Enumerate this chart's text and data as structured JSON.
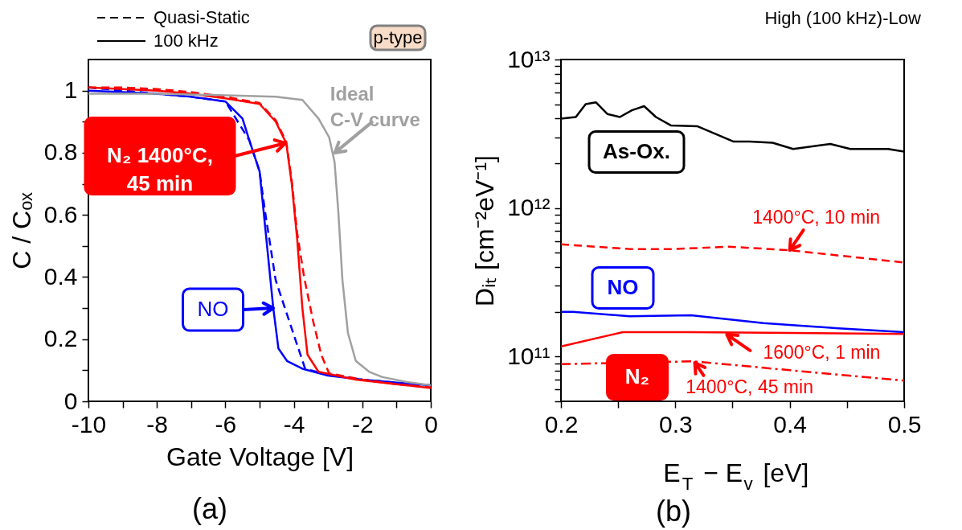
{
  "chart_data": [
    {
      "type": "line",
      "xlabel": "Gate Voltage [V]",
      "ylabel": "C / Cₒₓ",
      "xlim": [
        -10,
        0
      ],
      "xticks": [
        -10,
        {
          "value": -9,
          "label": null
        },
        -8,
        {
          "value": -7,
          "label": null
        },
        -6,
        {
          "value": -5,
          "label": null
        },
        -4,
        {
          "value": -3,
          "label": null
        },
        -2,
        {
          "value": -1,
          "label": null
        },
        0
      ],
      "ylim": [
        0,
        1.1
      ],
      "yticks": [
        0,
        {
          "value": 0.1,
          "label": null
        },
        0.2,
        {
          "value": 0.3,
          "label": null
        },
        0.4,
        {
          "value": 0.5,
          "label": null
        },
        0.6,
        {
          "value": 0.7,
          "label": null
        },
        0.8,
        {
          "value": 0.9,
          "label": null
        },
        1
      ],
      "series": [
        {
          "color": "#0000ff",
          "line_style": "solid",
          "x": [
            -10,
            -9,
            -8,
            -7,
            -6,
            -5.5,
            -5.3,
            -5.0,
            -4.8,
            -4.6,
            -4.45,
            -4.2,
            -3.75,
            -3,
            -2,
            -1,
            0
          ],
          "values": [
            1.0,
            0.995,
            0.99,
            0.98,
            0.965,
            0.91,
            0.84,
            0.74,
            0.52,
            0.3,
            0.17,
            0.13,
            0.105,
            0.083,
            0.07,
            0.06,
            0.052
          ]
        },
        {
          "color": "#0000ff",
          "line_style": "dashed",
          "x": [
            -10,
            -8,
            -7,
            -6,
            -5.3,
            -5.0,
            -4.84,
            -4.53,
            -4.14,
            -3.67,
            -3,
            -2,
            -1,
            0
          ],
          "values": [
            1.01,
            0.99,
            0.98,
            0.965,
            0.84,
            0.74,
            0.61,
            0.39,
            0.26,
            0.105,
            0.085,
            0.07,
            0.06,
            0.052
          ]
        },
        {
          "color": "#ff0000",
          "line_style": "solid",
          "x": [
            -10,
            -9,
            -8,
            -7,
            -6,
            -5,
            -4.53,
            -4.22,
            -4.06,
            -3.9,
            -3.75,
            -3.6,
            -3.28,
            -2.19,
            -1,
            0
          ],
          "values": [
            1.01,
            1.005,
            1.0,
            0.99,
            0.975,
            0.957,
            0.9,
            0.83,
            0.7,
            0.52,
            0.3,
            0.15,
            0.095,
            0.07,
            0.055,
            0.043
          ]
        },
        {
          "color": "#ff0000",
          "line_style": "dashed",
          "x": [
            -10,
            -9,
            -8,
            -7,
            -6,
            -5,
            -4.53,
            -4.22,
            -4.06,
            -3.9,
            -3.7,
            -3.44,
            -3.2,
            -2.97,
            -2,
            -1,
            0
          ],
          "values": [
            1.01,
            1.01,
            1.005,
            0.995,
            0.98,
            0.96,
            0.905,
            0.835,
            0.71,
            0.54,
            0.4,
            0.26,
            0.15,
            0.09,
            0.07,
            0.055,
            0.045
          ]
        },
        {
          "color": "#a0a0a0",
          "line_style": "solid",
          "x": [
            -10,
            -8,
            -6,
            -4.53,
            -3.75,
            -3.28,
            -2.97,
            -2.81,
            -2.7,
            -2.58,
            -2.42,
            -2.19,
            -1.8,
            -1.41,
            -0.7,
            0
          ],
          "values": [
            0.99,
            0.99,
            0.985,
            0.98,
            0.97,
            0.91,
            0.85,
            0.77,
            0.61,
            0.39,
            0.22,
            0.13,
            0.095,
            0.078,
            0.062,
            0.052
          ]
        }
      ],
      "annotations": [
        "Quasi-Static",
        "100 kHz",
        "p-type",
        {
          "text": "Ideal\nC-V curve",
          "x": -2.8,
          "y": 0.8
        },
        "N₂ 1400°C,\n45 min",
        {
          "text": "NO",
          "x": -4.6,
          "y": 0.3
        },
        "(a)"
      ]
    },
    {
      "type": "line",
      "title": "High (100 kHz)-Low",
      "xlabel": "E$_{T}$ − E$_{v}$ [eV]",
      "ylabel": "Dᵢₜ [cm⁻²eV⁻¹]",
      "log": "y",
      "xlim": [
        0.2,
        0.5
      ],
      "xticks": [
        0.2,
        {
          "value": 0.25,
          "label": null
        },
        0.3,
        {
          "value": 0.35,
          "label": null
        },
        0.4,
        {
          "value": 0.45,
          "label": null
        },
        0.5
      ],
      "ylim": [
        50000000000.0,
        10000000000000.0
      ],
      "yticks": [
        {
          "value": 50000000000.0,
          "label": null
        },
        {
          "value": 60000000000.0,
          "label": null
        },
        {
          "value": 70000000000.0,
          "label": null
        },
        {
          "value": 80000000000.0,
          "label": null
        },
        {
          "value": 90000000000.0,
          "label": null
        },
        {
          "value": 100000000000.0,
          "label": "10¹¹"
        },
        {
          "value": 200000000000.0,
          "label": null
        },
        {
          "value": 300000000000.0,
          "label": null
        },
        {
          "value": 400000000000.0,
          "label": null
        },
        {
          "value": 500000000000.0,
          "label": null
        },
        {
          "value": 600000000000.0,
          "label": null
        },
        {
          "value": 700000000000.0,
          "label": null
        },
        {
          "value": 800000000000.0,
          "label": null
        },
        {
          "value": 900000000000.0,
          "label": null
        },
        {
          "value": 1000000000000.0,
          "label": "10¹²"
        },
        {
          "value": 2000000000000.0,
          "label": null
        },
        {
          "value": 3000000000000.0,
          "label": null
        },
        {
          "value": 4000000000000.0,
          "label": null
        },
        {
          "value": 5000000000000.0,
          "label": null
        },
        {
          "value": 6000000000000.0,
          "label": null
        },
        {
          "value": 7000000000000.0,
          "label": null
        },
        {
          "value": 8000000000000.0,
          "label": null
        },
        {
          "value": 9000000000000.0,
          "label": null
        },
        {
          "value": 10000000000000.0,
          "label": "10¹³"
        }
      ],
      "series": [
        {
          "color": "#000000",
          "line_style": "solid",
          "x": [
            0.2,
            0.213,
            0.2216,
            0.2305,
            0.2405,
            0.2515,
            0.262,
            0.2727,
            0.283,
            0.296,
            0.3195,
            0.351,
            0.365,
            0.385,
            0.403,
            0.4355,
            0.453,
            0.486,
            0.5
          ],
          "values": [
            4000000000000.0,
            4100000000000.0,
            5000000000000.0,
            5150000000000.0,
            4300000000000.0,
            4100000000000.0,
            4550000000000.0,
            4850000000000.0,
            4100000000000.0,
            3600000000000.0,
            3550000000000.0,
            2800000000000.0,
            2800000000000.0,
            2750000000000.0,
            2500000000000.0,
            2700000000000.0,
            2500000000000.0,
            2500000000000.0,
            2400000000000.0
          ]
        },
        {
          "color": "#ff0000",
          "line_style": "dashed",
          "x": [
            0.2,
            0.26,
            0.3,
            0.3465,
            0.4,
            0.5
          ],
          "values": [
            570000000000.0,
            530000000000.0,
            530000000000.0,
            550000000000.0,
            520000000000.0,
            430000000000.0
          ]
        },
        {
          "color": "#0000ff",
          "line_style": "solid",
          "x": [
            0.2,
            0.2105,
            0.26,
            0.3137,
            0.377,
            0.4426,
            0.5
          ],
          "values": [
            200000000000.0,
            200000000000.0,
            187000000000.0,
            190000000000.0,
            168000000000.0,
            155000000000.0,
            146000000000.0
          ]
        },
        {
          "color": "#ff0000",
          "line_style": "solid",
          "x": [
            0.2,
            0.254,
            0.3137,
            0.5
          ],
          "values": [
            117000000000.0,
            146000000000.0,
            146000000000.0,
            142000000000.0
          ]
        },
        {
          "color": "#ff0000",
          "line_style": "dashdot",
          "x": [
            0.2,
            0.316,
            0.4,
            0.5
          ],
          "values": [
            89000000000.0,
            93000000000.0,
            81000000000.0,
            69000000000.0
          ]
        }
      ],
      "annotations": [
        "As-Ox.",
        {
          "text": "1400°C, 10 min",
          "x": 0.4,
          "y": 520000000000.0
        },
        "NO",
        {
          "text": "1600°C, 1 min",
          "x": 0.345,
          "y": 141000000000.0
        },
        "N₂",
        {
          "text": "1400°C, 45 min",
          "x": 0.317,
          "y": 91000000000.0
        },
        "(b)"
      ]
    }
  ]
}
